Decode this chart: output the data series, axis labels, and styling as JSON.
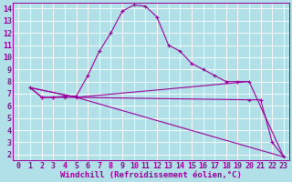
{
  "xlabel": "Windchill (Refroidissement éolien,°C)",
  "background_color": "#b2e0e8",
  "grid_color": "#ffffff",
  "line_color": "#990099",
  "xlim": [
    -0.5,
    23.5
  ],
  "ylim": [
    1.5,
    14.5
  ],
  "xticks": [
    0,
    1,
    2,
    3,
    4,
    5,
    6,
    7,
    8,
    9,
    10,
    11,
    12,
    13,
    14,
    15,
    16,
    17,
    18,
    19,
    20,
    21,
    22,
    23
  ],
  "yticks": [
    2,
    3,
    4,
    5,
    6,
    7,
    8,
    9,
    10,
    11,
    12,
    13,
    14
  ],
  "curve1_x": [
    1,
    2,
    3,
    4,
    5,
    6,
    7,
    8,
    9,
    10,
    11,
    12,
    13,
    14,
    15,
    16,
    17,
    18,
    19,
    20
  ],
  "curve1_y": [
    7.5,
    6.7,
    6.7,
    6.8,
    6.8,
    8.5,
    10.5,
    12.0,
    13.8,
    14.3,
    14.2,
    13.3,
    11.0,
    10.5,
    9.5,
    9.0,
    8.5,
    8.0,
    8.0,
    8.0
  ],
  "curve2_x": [
    1,
    2,
    3,
    4,
    5,
    20,
    21,
    22,
    23
  ],
  "curve2_y": [
    7.5,
    6.7,
    6.7,
    6.7,
    6.7,
    6.5,
    6.5,
    3.0,
    1.8
  ],
  "curve3_x": [
    1,
    5,
    20,
    23
  ],
  "curve3_y": [
    7.5,
    6.7,
    8.0,
    1.8
  ],
  "curve4_x": [
    1,
    5,
    23
  ],
  "curve4_y": [
    7.5,
    6.7,
    1.8
  ],
  "font_size_axis": 6,
  "font_size_label": 6.5
}
